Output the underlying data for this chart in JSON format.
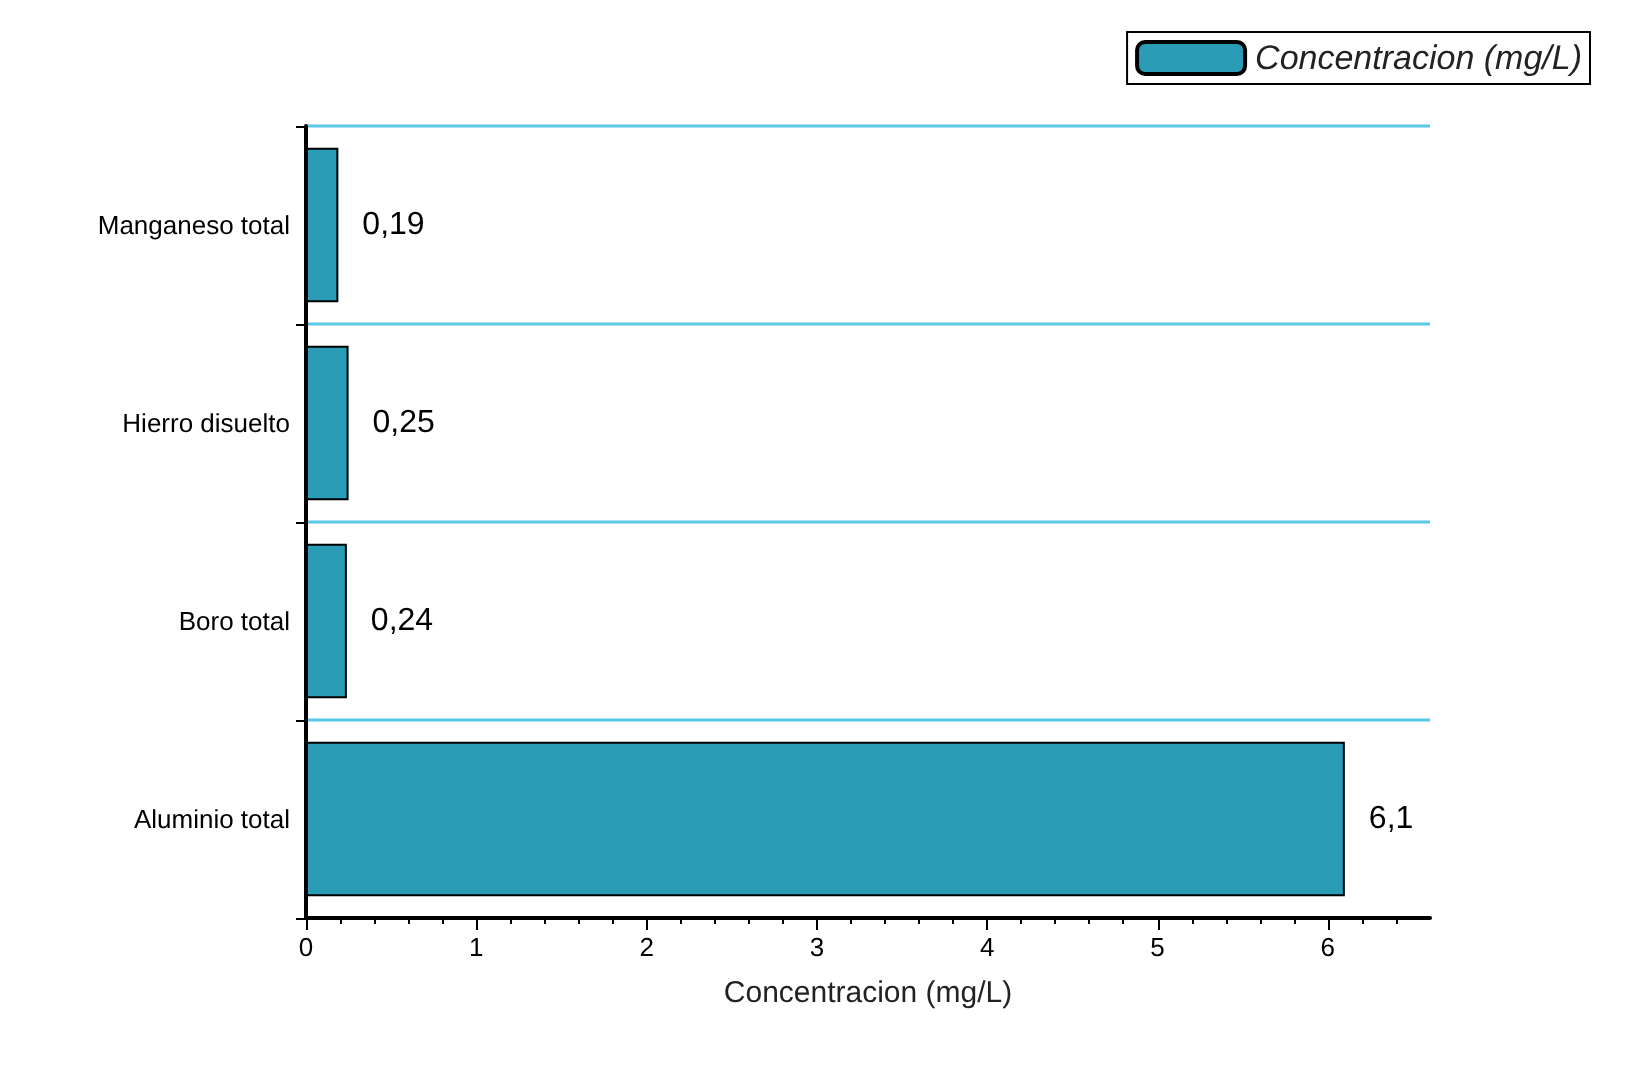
{
  "chart_data": {
    "type": "bar",
    "orientation": "horizontal",
    "xlabel": "Concentracion (mg/L)",
    "categories": [
      "Manganeso total",
      "Hierro disuelto",
      "Boro total",
      "Aluminio total"
    ],
    "series": [
      {
        "name": "Concentracion (mg/L)",
        "color": "#2a9cb5",
        "values": [
          0.19,
          0.25,
          0.24,
          6.1
        ],
        "value_labels": [
          "0,19",
          "0,25",
          "0,24",
          "6,1"
        ]
      }
    ],
    "xlim": [
      0,
      6.6
    ],
    "xticks": [
      0,
      1,
      2,
      3,
      4,
      5,
      6
    ],
    "grid": "y",
    "legend": "top right"
  }
}
